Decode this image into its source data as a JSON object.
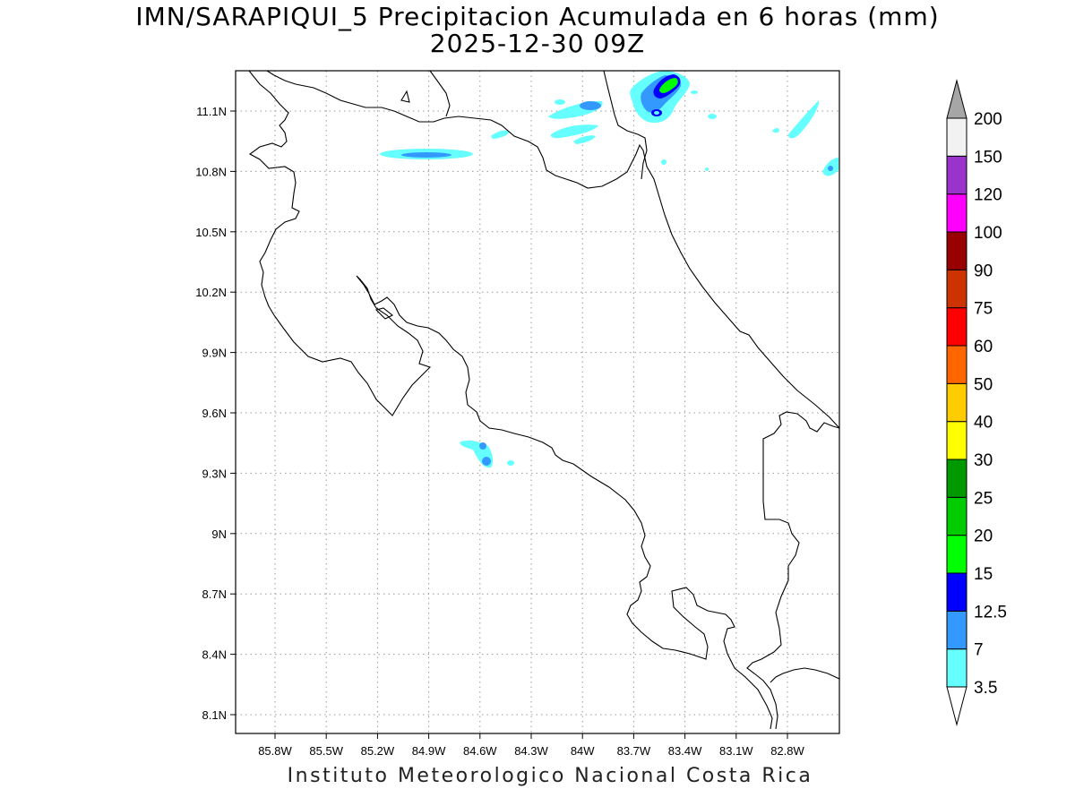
{
  "title": {
    "line1": "IMN/SARAPIQUI_5 Precipitacion Acumulada en 6 horas (mm)",
    "line2": "2025-12-30 09Z"
  },
  "credit": "Instituto Meteorologico Nacional Costa Rica",
  "axes": {
    "lon_ticks": [
      "85.8W",
      "85.5W",
      "85.2W",
      "84.9W",
      "84.6W",
      "84.3W",
      "84W",
      "83.7W",
      "83.4W",
      "83.1W",
      "82.8W"
    ],
    "lat_ticks": [
      "11.1N",
      "10.8N",
      "10.5N",
      "10.2N",
      "9.9N",
      "9.6N",
      "9.3N",
      "9N",
      "8.7N",
      "8.4N",
      "8.1N"
    ],
    "grid": "dotted"
  },
  "colorbar": {
    "levels": [
      "3.5",
      "7",
      "12.5",
      "15",
      "20",
      "25",
      "30",
      "40",
      "50",
      "60",
      "75",
      "90",
      "100",
      "120",
      "150",
      "200"
    ],
    "colors": [
      "#ffffff",
      "#66ffff",
      "#3399ff",
      "#0000ff",
      "#00ff00",
      "#00cc00",
      "#009900",
      "#ffff00",
      "#ffcc00",
      "#ff6600",
      "#ff0000",
      "#cc3300",
      "#990000",
      "#ff00ff",
      "#9933cc",
      "#f2f2f2",
      "#a6a6a6"
    ]
  }
}
